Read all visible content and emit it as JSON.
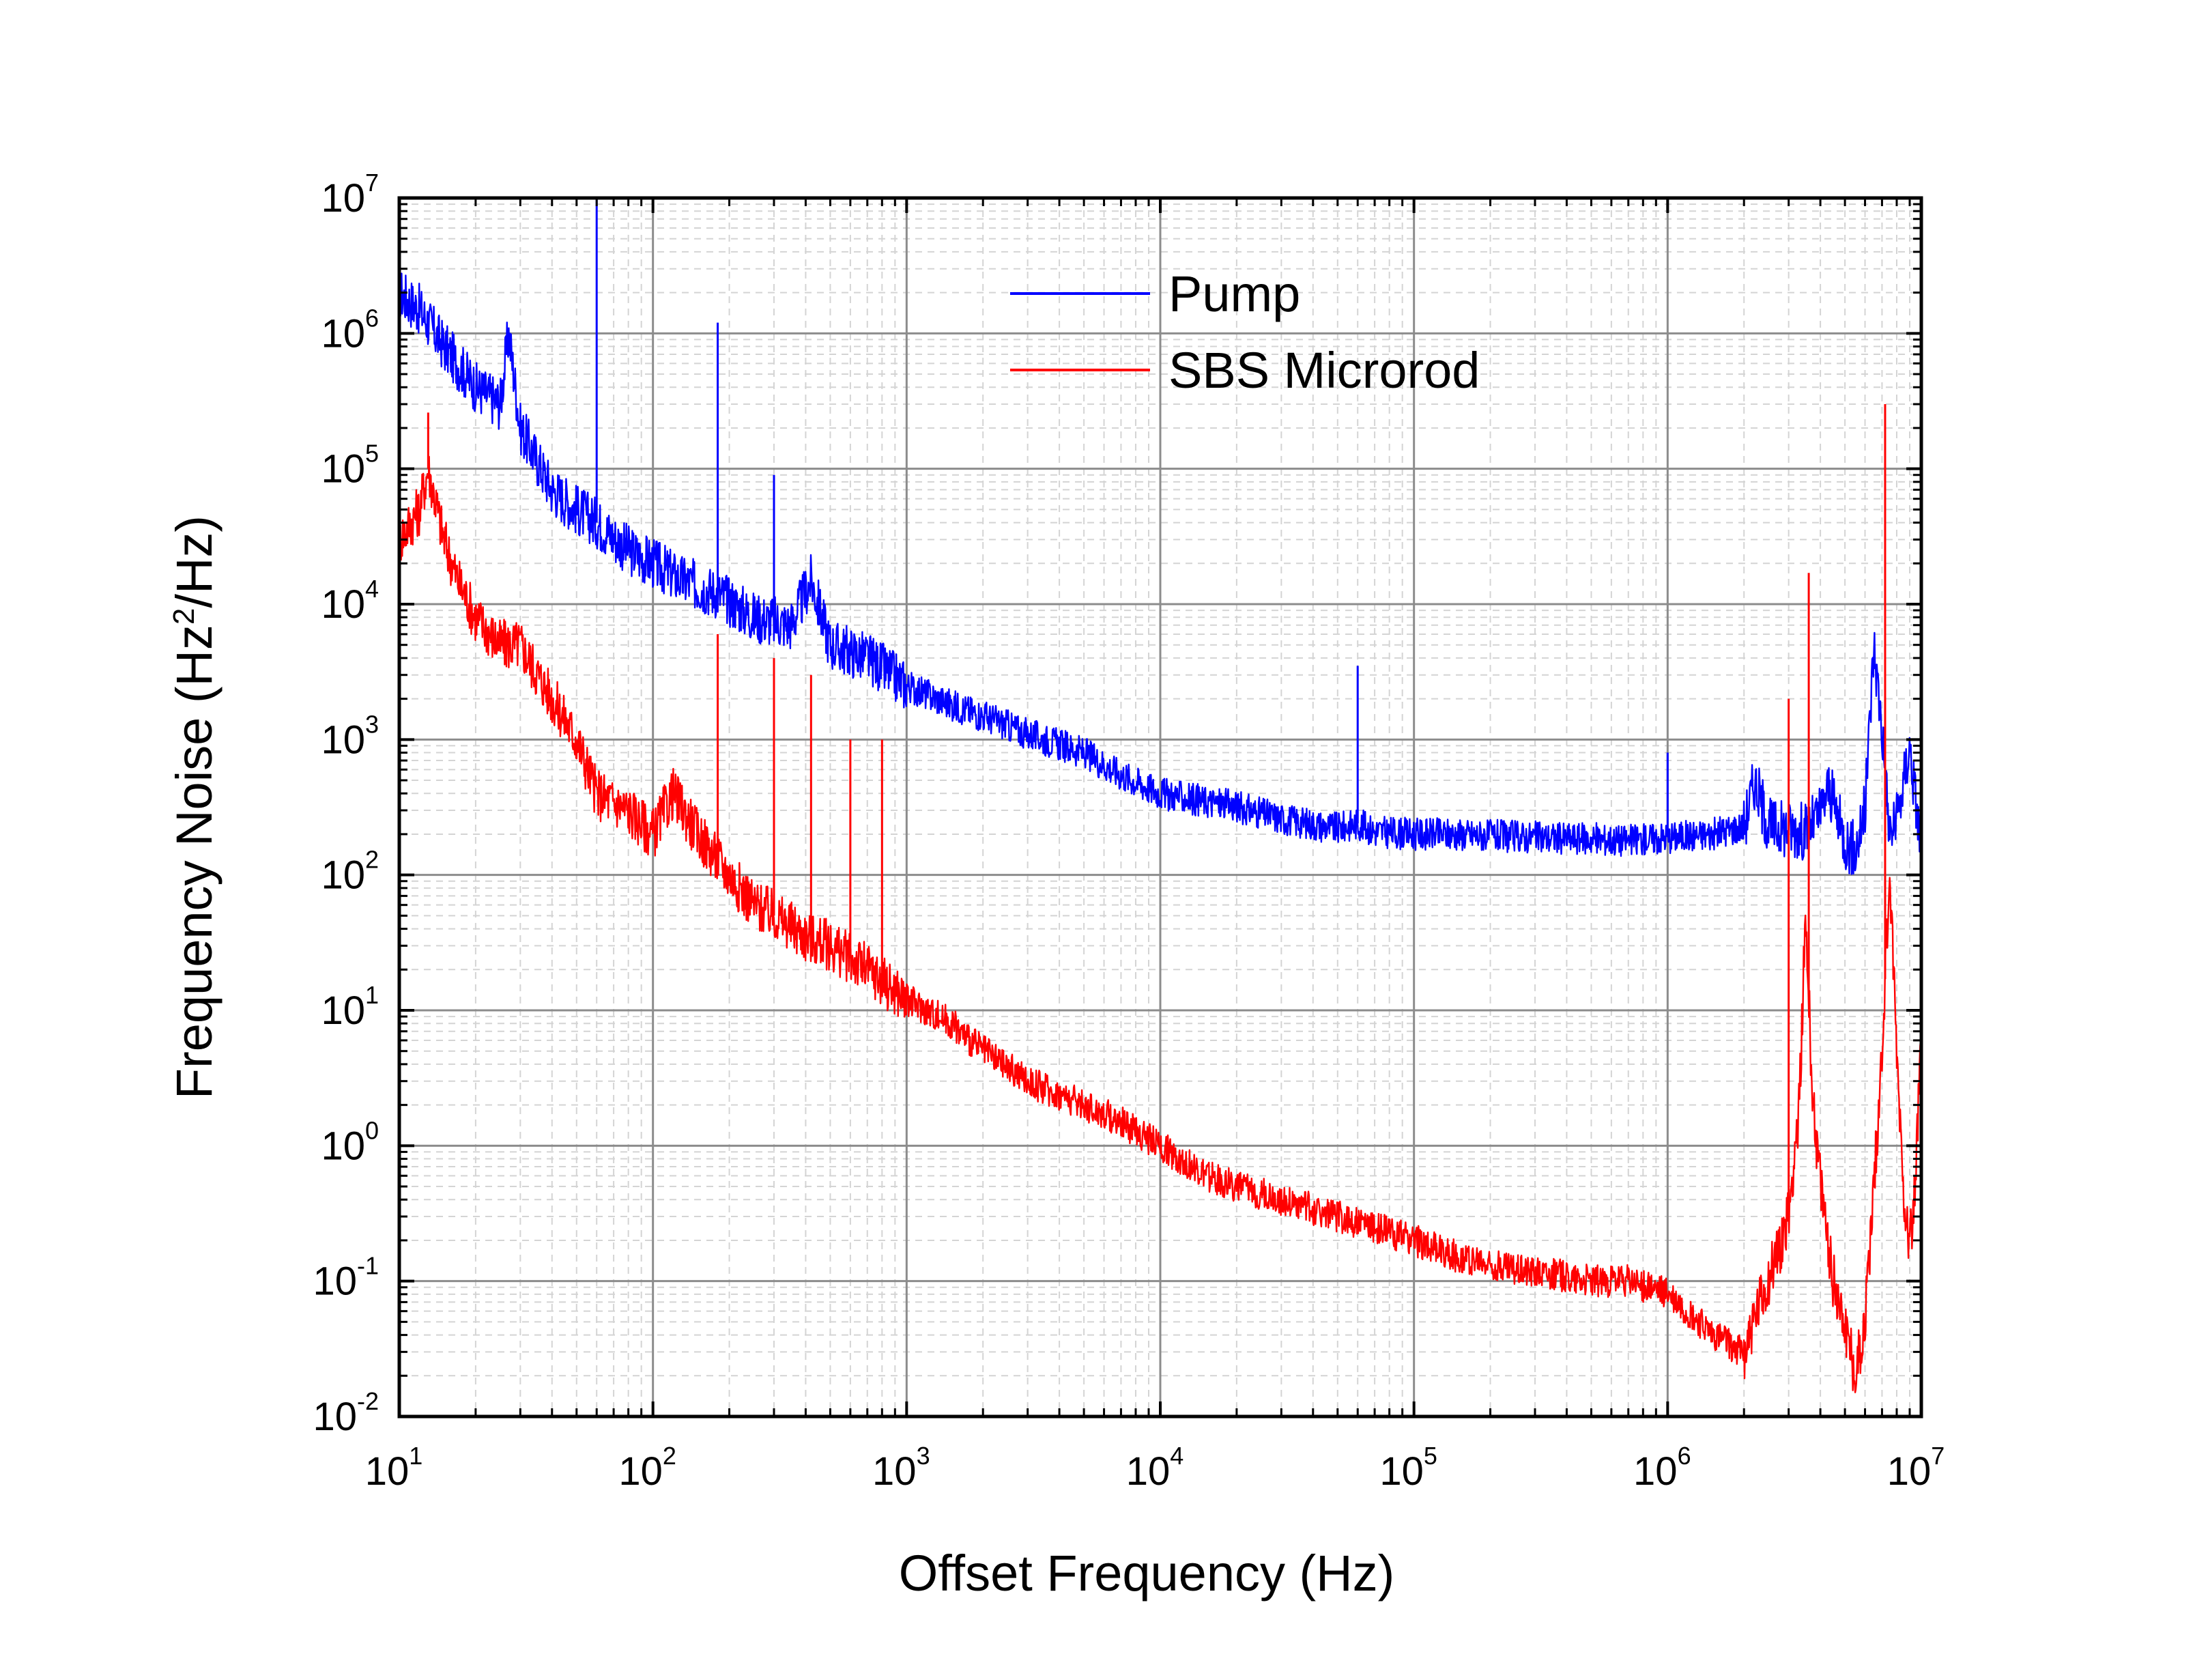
{
  "chart_data": {
    "type": "line",
    "title": "",
    "xlabel": "Offset Frequency (Hz)",
    "ylabel": {
      "prefix": "Frequency Noise (Hz",
      "sup": "2",
      "suffix": "/Hz)"
    },
    "xscale": "log",
    "yscale": "log",
    "xlim": [
      10,
      10000000
    ],
    "ylim": [
      0.01,
      10000000
    ],
    "grid": true,
    "legend_position": "top-center",
    "x_ticks": [
      {
        "base": "10",
        "exp": "1",
        "value": 10
      },
      {
        "base": "10",
        "exp": "2",
        "value": 100
      },
      {
        "base": "10",
        "exp": "3",
        "value": 1000
      },
      {
        "base": "10",
        "exp": "4",
        "value": 10000
      },
      {
        "base": "10",
        "exp": "5",
        "value": 100000
      },
      {
        "base": "10",
        "exp": "6",
        "value": 1000000
      },
      {
        "base": "10",
        "exp": "7",
        "value": 10000000
      }
    ],
    "y_ticks": [
      {
        "base": "10",
        "exp": "-2",
        "value": 0.01
      },
      {
        "base": "10",
        "exp": "-1",
        "value": 0.1
      },
      {
        "base": "10",
        "exp": "0",
        "value": 1
      },
      {
        "base": "10",
        "exp": "1",
        "value": 10
      },
      {
        "base": "10",
        "exp": "2",
        "value": 100
      },
      {
        "base": "10",
        "exp": "3",
        "value": 1000
      },
      {
        "base": "10",
        "exp": "4",
        "value": 10000
      },
      {
        "base": "10",
        "exp": "5",
        "value": 100000
      },
      {
        "base": "10",
        "exp": "6",
        "value": 1000000
      },
      {
        "base": "10",
        "exp": "7",
        "value": 10000000
      }
    ],
    "series": [
      {
        "name": "Pump",
        "color": "#0000ff",
        "x": [
          10,
          12,
          15,
          20,
          25,
          27,
          30,
          40,
          50,
          60,
          80,
          100,
          130,
          180,
          250,
          350,
          420,
          500,
          700,
          1000,
          1500,
          2000,
          3000,
          5000,
          7000,
          10000,
          15000,
          20000,
          30000,
          50000,
          60000,
          70000,
          100000,
          150000,
          200000,
          300000,
          500000,
          700000,
          1000000,
          1500000,
          2000000,
          2200000,
          2500000,
          3000000,
          3500000,
          4000000,
          4300000,
          5000000,
          5500000,
          6000000,
          6500000,
          7000000,
          7500000,
          8000000,
          9000000,
          10000000
        ],
        "y": [
          2000000,
          1500000,
          800000,
          400000,
          300000,
          1000000,
          200000,
          70000,
          50000,
          40000,
          25000,
          20000,
          15000,
          12000,
          8000,
          7000,
          15000,
          5000,
          4000,
          2500,
          1800,
          1500,
          1100,
          800,
          550,
          400,
          350,
          320,
          260,
          220,
          240,
          210,
          200,
          200,
          195,
          190,
          185,
          180,
          190,
          200,
          230,
          500,
          230,
          220,
          210,
          280,
          450,
          180,
          150,
          300,
          5000,
          1200,
          200,
          250,
          900,
          150
        ]
      },
      {
        "name": "SBS Microrod",
        "color": "#ff0000",
        "x": [
          10,
          12,
          13,
          15,
          17,
          20,
          25,
          30,
          40,
          50,
          60,
          80,
          100,
          120,
          150,
          200,
          250,
          300,
          400,
          500,
          700,
          1000,
          1500,
          2000,
          3000,
          5000,
          7000,
          10000,
          15000,
          20000,
          30000,
          50000,
          70000,
          100000,
          150000,
          200000,
          300000,
          500000,
          700000,
          1000000,
          1500000,
          2000000,
          2500000,
          3000000,
          3300000,
          3500000,
          3700000,
          4000000,
          4500000,
          5000000,
          5500000,
          6000000,
          6500000,
          7000000,
          7500000,
          8000000,
          8500000,
          9000000,
          9500000,
          10000000
        ],
        "y": [
          30000,
          50000,
          100000,
          30000,
          15000,
          8000,
          5000,
          5000,
          2000,
          1000,
          400,
          300,
          200,
          400,
          200,
          100,
          60,
          50,
          35,
          30,
          20,
          12,
          8,
          5,
          3,
          2,
          1.5,
          1,
          0.6,
          0.5,
          0.4,
          0.3,
          0.25,
          0.2,
          0.15,
          0.13,
          0.12,
          0.1,
          0.1,
          0.08,
          0.04,
          0.03,
          0.1,
          0.3,
          2,
          50,
          3,
          0.5,
          0.1,
          0.05,
          0.02,
          0.05,
          0.5,
          5,
          100,
          5,
          0.5,
          0.2,
          0.5,
          10
        ]
      }
    ],
    "spikes": [
      {
        "series": "Pump",
        "x": 60,
        "peak": 10000000
      },
      {
        "series": "Pump",
        "x": 180,
        "peak": 1200000
      },
      {
        "series": "Pump",
        "x": 300,
        "peak": 90000
      },
      {
        "series": "Pump",
        "x": 60000,
        "peak": 3500
      },
      {
        "series": "Pump",
        "x": 1000000,
        "peak": 800
      },
      {
        "series": "SBS Microrod",
        "x": 13,
        "peak": 260000
      },
      {
        "series": "SBS Microrod",
        "x": 180,
        "peak": 6000
      },
      {
        "series": "SBS Microrod",
        "x": 300,
        "peak": 4000
      },
      {
        "series": "SBS Microrod",
        "x": 420,
        "peak": 3000
      },
      {
        "series": "SBS Microrod",
        "x": 600,
        "peak": 1000
      },
      {
        "series": "SBS Microrod",
        "x": 800,
        "peak": 1000
      },
      {
        "series": "SBS Microrod",
        "x": 3000000,
        "peak": 2000
      },
      {
        "series": "SBS Microrod",
        "x": 3600000,
        "peak": 17000
      },
      {
        "series": "SBS Microrod",
        "x": 7200000,
        "peak": 300000
      }
    ]
  }
}
